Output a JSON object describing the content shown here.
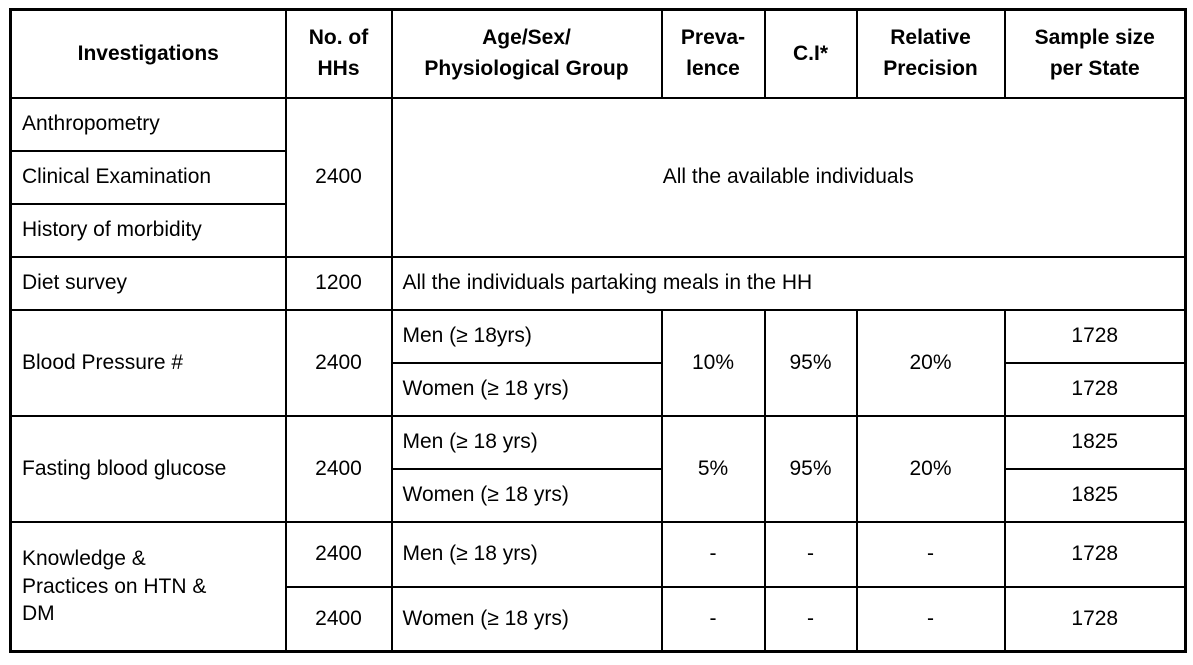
{
  "table": {
    "headers": {
      "investigations": "Investigations",
      "no_of_hhs": "No. of\nHHs",
      "age_sex_group": "Age/Sex/\nPhysiological Group",
      "prevalence": "Preva-\nlence",
      "ci": "C.I*",
      "relative_precision": "Relative\nPrecision",
      "sample_size": "Sample size\nper State"
    },
    "group_all": {
      "investigations": [
        "Anthropometry",
        "Clinical Examination",
        "History of morbidity"
      ],
      "no_of_hhs": "2400",
      "note": "All the available individuals"
    },
    "diet": {
      "investigation": "Diet survey",
      "no_of_hhs": "1200",
      "note": "All the individuals partaking meals in the HH"
    },
    "blood_pressure": {
      "investigation": "Blood Pressure #",
      "no_of_hhs": "2400",
      "men_label": "Men (≥ 18yrs)",
      "women_label": "Women (≥ 18 yrs)",
      "prevalence": "10%",
      "ci": "95%",
      "relative_precision": "20%",
      "sample_men": "1728",
      "sample_women": "1728"
    },
    "fasting_glucose": {
      "investigation": "Fasting blood glucose",
      "no_of_hhs": "2400",
      "men_label": "Men (≥ 18 yrs)",
      "women_label": "Women (≥ 18 yrs)",
      "prevalence": "5%",
      "ci": "95%",
      "relative_precision": "20%",
      "sample_men": "1825",
      "sample_women": "1825"
    },
    "knowledge": {
      "investigation": "Knowledge &\nPractices on HTN &\nDM",
      "rows": [
        {
          "no_of_hhs": "2400",
          "group": "Men (≥ 18 yrs)",
          "prevalence": "-",
          "ci": "-",
          "relative_precision": "-",
          "sample": "1728"
        },
        {
          "no_of_hhs": "2400",
          "group": "Women (≥ 18 yrs)",
          "prevalence": "-",
          "ci": "-",
          "relative_precision": "-",
          "sample": "1728"
        }
      ]
    }
  }
}
